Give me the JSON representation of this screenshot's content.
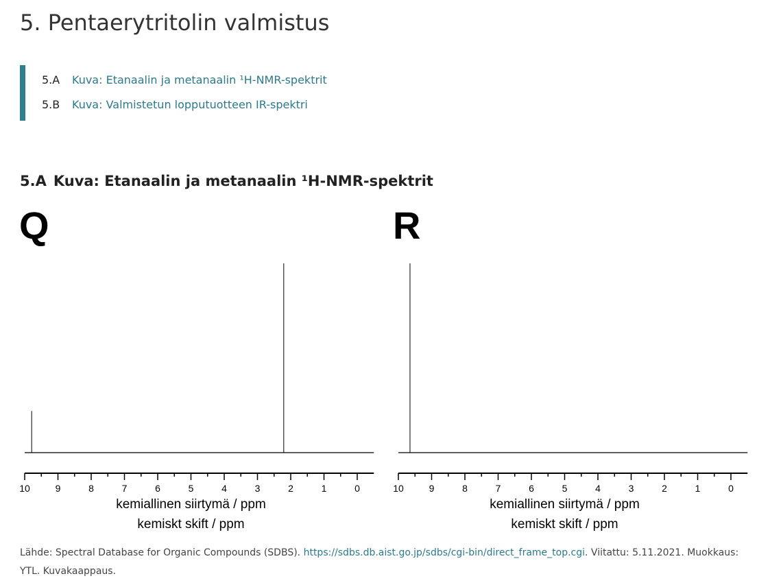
{
  "header": {
    "title": "5. Pentaerytritolin valmistus"
  },
  "toc": [
    {
      "number": "5.A",
      "label": "Kuva: Etanaalin ja metanaalin ¹H-NMR-spektrit"
    },
    {
      "number": "5.B",
      "label": "Kuva: Valmistetun lopputuotteen IR-spektri"
    }
  ],
  "section": {
    "number": "5.A",
    "title": "Kuva: Etanaalin ja metanaalin ¹H-NMR-spektrit"
  },
  "figure": {
    "panels": [
      {
        "label": "Q",
        "xlim": [
          10,
          -0.5
        ],
        "ylim": [
          0,
          100
        ],
        "xticks": [
          10,
          9,
          8,
          7,
          6,
          5,
          4,
          3,
          2,
          1,
          0
        ],
        "peaks": [
          {
            "ppm": 9.79,
            "height": 22
          },
          {
            "ppm": 2.21,
            "height": 100
          }
        ],
        "xlabel": "kemiallinen siirtymä / ppm",
        "xlabel2": "kemiskt skift / ppm"
      },
      {
        "label": "R",
        "xlim": [
          10,
          -0.5
        ],
        "ylim": [
          0,
          100
        ],
        "xticks": [
          10,
          9,
          8,
          7,
          6,
          5,
          4,
          3,
          2,
          1,
          0
        ],
        "peaks": [
          {
            "ppm": 9.65,
            "height": 100
          }
        ],
        "xlabel": "kemiallinen siirtymä / ppm",
        "xlabel2": "kemiskt skift / ppm"
      }
    ]
  },
  "caption": {
    "before": "Lähde: Spectral Database for Organic Compounds (SDBS).",
    "link": "https://sdbs.db.aist.go.jp/sdbs/cgi-bin/direct_frame_top.cgi",
    "after": ". Viitattu: 5.11.2021. Muokkaus: YTL. Kuvakaappaus."
  }
}
